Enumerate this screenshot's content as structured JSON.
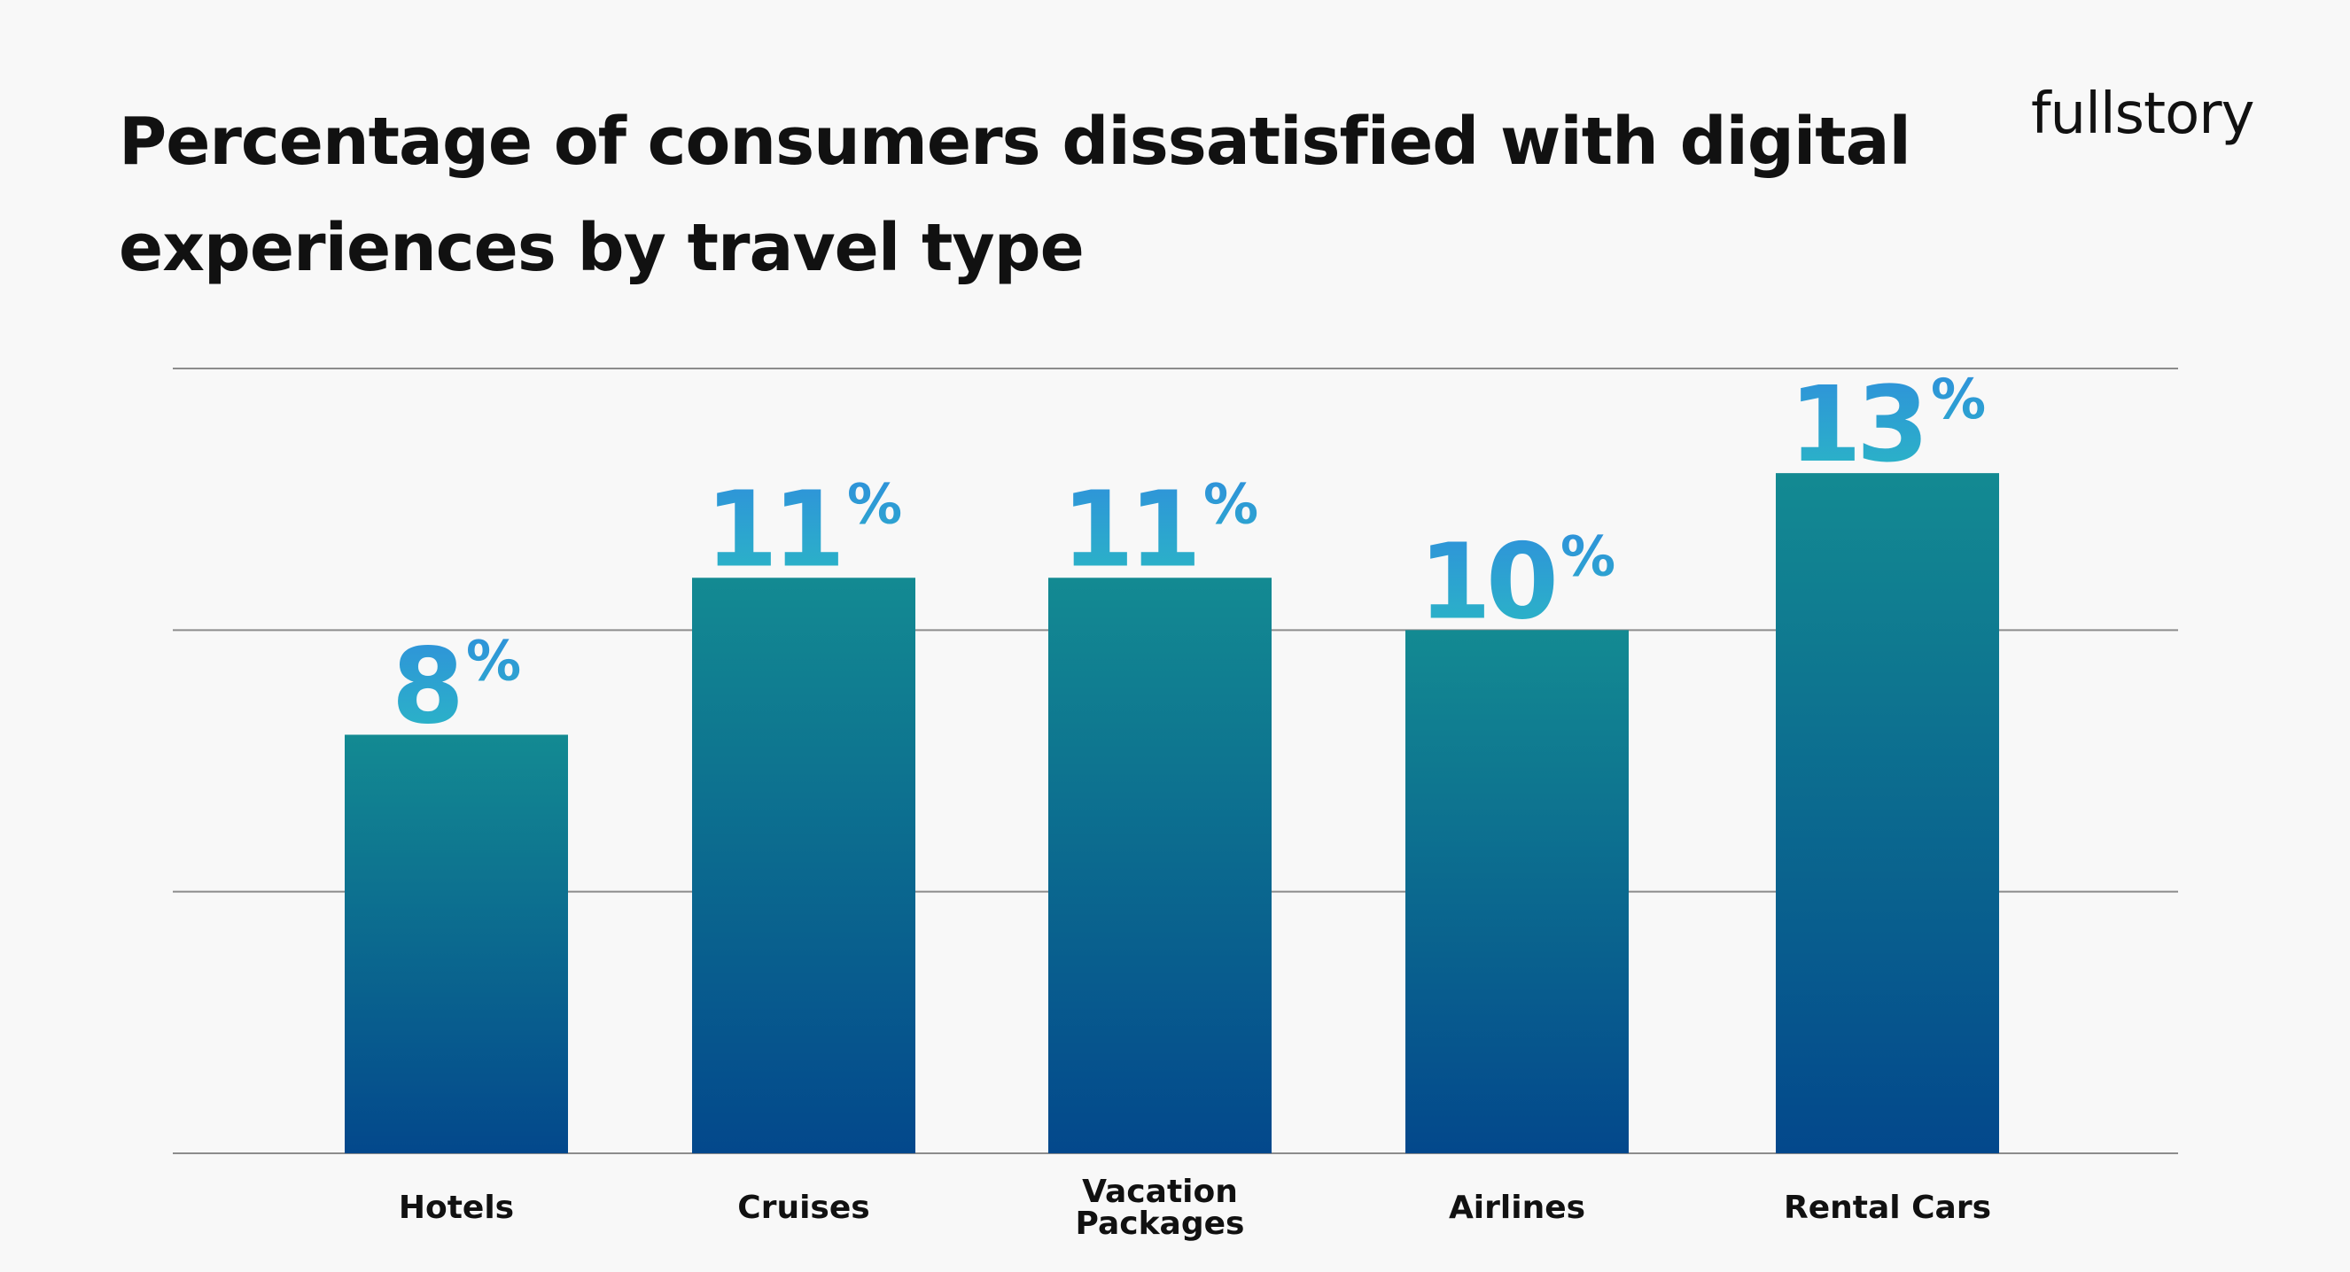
{
  "chart_data": {
    "type": "bar",
    "title": "Percentage of consumers dissatisfied with digital experiences by travel type",
    "categories": [
      "Hotels",
      "Cruises",
      "Vacation Packages",
      "Airlines",
      "Rental Cars"
    ],
    "category_lines": [
      [
        "Hotels"
      ],
      [
        "Cruises"
      ],
      [
        "Vacation",
        "Packages"
      ],
      [
        "Airlines"
      ],
      [
        "Rental Cars"
      ]
    ],
    "values": [
      8,
      11,
      11,
      10,
      13
    ],
    "value_suffix": "%",
    "xlabel": "",
    "ylabel": "",
    "ylim": [
      0,
      15
    ],
    "grid": true,
    "legend": "none",
    "colors": {
      "bar_top": "#138a92",
      "bar_bottom": "#03488c",
      "label_top": "#2f8fdc",
      "label_bottom": "#2ab8c4",
      "gridline": "#8c8c8c",
      "text": "#111111"
    }
  },
  "brand": {
    "logo_text": "fullstory"
  }
}
